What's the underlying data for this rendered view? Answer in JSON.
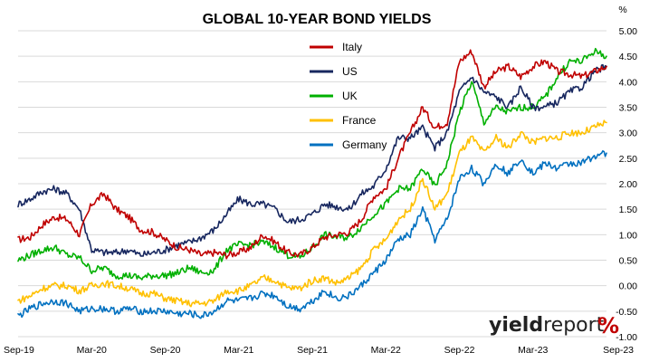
{
  "chart_data": {
    "type": "line",
    "title": "GLOBAL 10-YEAR BOND YIELDS",
    "ylabel": "%",
    "xlabel": "",
    "ylim": [
      -1.0,
      5.0
    ],
    "y_ticks": [
      "5.00",
      "4.50",
      "4.00",
      "3.50",
      "3.00",
      "2.50",
      "2.00",
      "1.50",
      "1.00",
      "0.50",
      "0.00",
      "-0.50",
      "-1.00"
    ],
    "x_ticks": [
      "Sep-19",
      "Mar-20",
      "Sep-20",
      "Mar-21",
      "Sep-21",
      "Mar-22",
      "Sep-22",
      "Mar-23",
      "Sep-23"
    ],
    "grid": true,
    "legend_position": "top-center",
    "x": [
      "Sep-19",
      "Oct-19",
      "Nov-19",
      "Dec-19",
      "Jan-20",
      "Feb-20",
      "Mar-20",
      "Apr-20",
      "May-20",
      "Jun-20",
      "Jul-20",
      "Aug-20",
      "Sep-20",
      "Oct-20",
      "Nov-20",
      "Dec-20",
      "Jan-21",
      "Feb-21",
      "Mar-21",
      "Apr-21",
      "May-21",
      "Jun-21",
      "Jul-21",
      "Aug-21",
      "Sep-21",
      "Oct-21",
      "Nov-21",
      "Dec-21",
      "Jan-22",
      "Feb-22",
      "Mar-22",
      "Apr-22",
      "May-22",
      "Jun-22",
      "Jul-22",
      "Aug-22",
      "Sep-22",
      "Oct-22",
      "Nov-22",
      "Dec-22",
      "Jan-23",
      "Feb-23",
      "Mar-23",
      "Apr-23",
      "May-23",
      "Jun-23",
      "Jul-23",
      "Aug-23",
      "Sep-23"
    ],
    "series": [
      {
        "name": "Italy",
        "color": "#c00000",
        "values": [
          0.9,
          0.95,
          1.2,
          1.35,
          1.3,
          1.0,
          1.6,
          1.8,
          1.5,
          1.35,
          1.1,
          1.05,
          0.9,
          0.75,
          0.7,
          0.6,
          0.65,
          0.6,
          0.65,
          0.75,
          1.0,
          0.85,
          0.65,
          0.6,
          0.75,
          0.95,
          1.0,
          1.05,
          1.3,
          1.75,
          1.9,
          2.5,
          3.0,
          3.5,
          3.1,
          3.2,
          4.4,
          4.6,
          3.9,
          4.2,
          4.3,
          4.1,
          4.3,
          4.4,
          4.2,
          4.15,
          4.1,
          4.2,
          4.3
        ]
      },
      {
        "name": "US",
        "color": "#17275f",
        "values": [
          1.6,
          1.7,
          1.85,
          1.9,
          1.8,
          1.5,
          0.7,
          0.65,
          0.65,
          0.7,
          0.6,
          0.65,
          0.7,
          0.8,
          0.85,
          0.95,
          1.1,
          1.4,
          1.7,
          1.6,
          1.6,
          1.5,
          1.25,
          1.3,
          1.4,
          1.6,
          1.55,
          1.5,
          1.8,
          1.95,
          2.3,
          2.9,
          2.9,
          3.1,
          2.7,
          3.0,
          3.8,
          4.1,
          3.8,
          3.7,
          3.5,
          3.9,
          3.5,
          3.5,
          3.6,
          3.8,
          3.9,
          4.2,
          4.3
        ]
      },
      {
        "name": "UK",
        "color": "#00b000",
        "values": [
          0.5,
          0.6,
          0.7,
          0.75,
          0.6,
          0.55,
          0.3,
          0.35,
          0.2,
          0.2,
          0.15,
          0.2,
          0.2,
          0.25,
          0.35,
          0.25,
          0.3,
          0.7,
          0.8,
          0.8,
          0.85,
          0.75,
          0.6,
          0.55,
          0.75,
          1.0,
          0.95,
          0.95,
          1.15,
          1.4,
          1.6,
          1.9,
          1.9,
          2.3,
          1.95,
          2.4,
          3.4,
          4.0,
          3.2,
          3.5,
          3.4,
          3.5,
          3.5,
          3.7,
          4.1,
          4.4,
          4.4,
          4.6,
          4.5
        ]
      },
      {
        "name": "France",
        "color": "#ffc000",
        "values": [
          -0.3,
          -0.2,
          -0.05,
          0.0,
          0.0,
          -0.1,
          0.0,
          0.05,
          0.0,
          -0.05,
          -0.15,
          -0.15,
          -0.25,
          -0.3,
          -0.35,
          -0.35,
          -0.3,
          -0.1,
          -0.1,
          0.0,
          0.15,
          0.1,
          -0.05,
          -0.05,
          0.1,
          0.15,
          0.05,
          0.15,
          0.35,
          0.7,
          0.9,
          1.3,
          1.5,
          2.1,
          1.5,
          1.8,
          2.6,
          2.9,
          2.6,
          2.9,
          2.7,
          3.0,
          2.8,
          2.9,
          2.9,
          3.0,
          3.0,
          3.1,
          3.2
        ]
      },
      {
        "name": "Germany",
        "color": "#0070c0",
        "values": [
          -0.6,
          -0.45,
          -0.35,
          -0.3,
          -0.35,
          -0.5,
          -0.45,
          -0.45,
          -0.5,
          -0.45,
          -0.5,
          -0.5,
          -0.5,
          -0.55,
          -0.55,
          -0.6,
          -0.5,
          -0.3,
          -0.3,
          -0.25,
          -0.15,
          -0.2,
          -0.4,
          -0.45,
          -0.3,
          -0.1,
          -0.25,
          -0.2,
          0.0,
          0.25,
          0.5,
          0.9,
          1.0,
          1.5,
          0.9,
          1.3,
          2.1,
          2.3,
          2.0,
          2.4,
          2.2,
          2.5,
          2.2,
          2.4,
          2.3,
          2.4,
          2.4,
          2.55,
          2.6
        ]
      }
    ]
  },
  "brand": {
    "yield": "yield",
    "report": "report",
    "mark": "%"
  }
}
